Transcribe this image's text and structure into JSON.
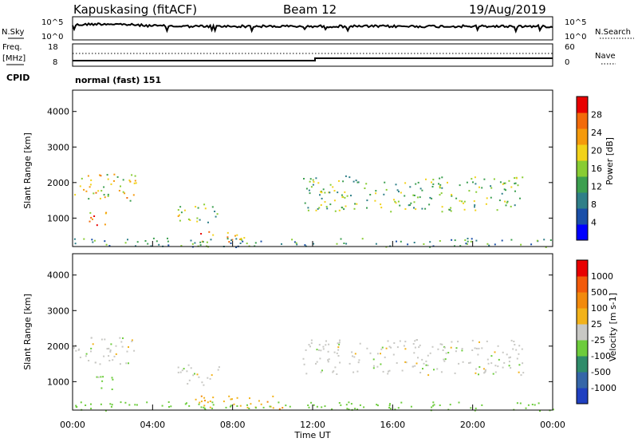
{
  "header": {
    "site": "Kapuskasing (fitACF)",
    "beam": "Beam 12",
    "date": "19/Aug/2019"
  },
  "top_panels": {
    "nsky_label": "N.Sky",
    "nsky_ticks": [
      "10^5",
      "10^0"
    ],
    "nsearch_label": "N.Search",
    "nsearch_ticks": [
      "10^5",
      "10^0"
    ],
    "freq_label": "Freq.",
    "freq_unit": "[MHz]",
    "freq_ticks": [
      "18",
      "8"
    ],
    "nave_label": "Nave",
    "nave_ticks": [
      "60",
      "0"
    ],
    "cpid_label": "CPID",
    "cpid_value": "normal (fast) 151"
  },
  "chart_data": [
    {
      "type": "heatmap",
      "name": "power",
      "ylabel": "Slant Range [km]",
      "yticks": [
        1000,
        2000,
        3000,
        4000
      ],
      "ylim": [
        200,
        4600
      ],
      "xlim": [
        0,
        24
      ],
      "colorbar_label": "Power [dB]",
      "colorbar_ticks": [
        "28",
        "24",
        "20",
        "16",
        "12",
        "8",
        "4"
      ],
      "colors": [
        "#0000ff",
        "#1a4fa8",
        "#2f7f88",
        "#3c9f4f",
        "#88cc33",
        "#f2d21a",
        "#f59a0c",
        "#f26a0a",
        "#e80000"
      ],
      "echo_regions": [
        {
          "t": [
            0.0,
            3.2
          ],
          "r": [
            1500,
            2300
          ],
          "mean_db": 20
        },
        {
          "t": [
            0.8,
            2.2
          ],
          "r": [
            800,
            1200
          ],
          "mean_db": 24
        },
        {
          "t": [
            5.2,
            7.3
          ],
          "r": [
            900,
            1500
          ],
          "mean_db": 16
        },
        {
          "t": [
            6.0,
            8.6
          ],
          "r": [
            350,
            650
          ],
          "mean_db": 25
        },
        {
          "t": [
            11.5,
            22.5
          ],
          "r": [
            1200,
            2200
          ],
          "mean_db": 14
        },
        {
          "t": [
            0.0,
            24.0
          ],
          "r": [
            200,
            450
          ],
          "mean_db": 10
        }
      ]
    },
    {
      "type": "heatmap",
      "name": "velocity",
      "ylabel": "Slant Range [km]",
      "yticks": [
        1000,
        2000,
        3000,
        4000
      ],
      "ylim": [
        200,
        4600
      ],
      "xlim": [
        0,
        24
      ],
      "xlabel": "Time UT",
      "xticks": [
        "00:00",
        "04:00",
        "08:00",
        "12:00",
        "16:00",
        "20:00",
        "00:00"
      ],
      "colorbar_label": "Velocity [m s-1]",
      "colorbar_ticks": [
        "1000",
        "500",
        "100",
        "25",
        "-25",
        "-100",
        "-500",
        "-1000"
      ],
      "colors": [
        "#2040c0",
        "#3566a8",
        "#2f8c6a",
        "#6dcc3c",
        "#c8c8c4",
        "#f2b21a",
        "#f28a0c",
        "#f25a0a",
        "#e80000"
      ],
      "echo_regions": [
        {
          "t": [
            0.0,
            3.2
          ],
          "r": [
            1500,
            2300
          ],
          "mean_v": 0
        },
        {
          "t": [
            0.8,
            2.2
          ],
          "r": [
            800,
            1200
          ],
          "mean_v": 50
        },
        {
          "t": [
            5.2,
            7.3
          ],
          "r": [
            900,
            1500
          ],
          "mean_v": 0
        },
        {
          "t": [
            6.0,
            10.5
          ],
          "r": [
            250,
            650
          ],
          "mean_v": -80
        },
        {
          "t": [
            11.5,
            22.5
          ],
          "r": [
            1200,
            2200
          ],
          "mean_v": 0
        },
        {
          "t": [
            0.0,
            24.0
          ],
          "r": [
            200,
            450
          ],
          "mean_v": 60
        }
      ]
    }
  ]
}
